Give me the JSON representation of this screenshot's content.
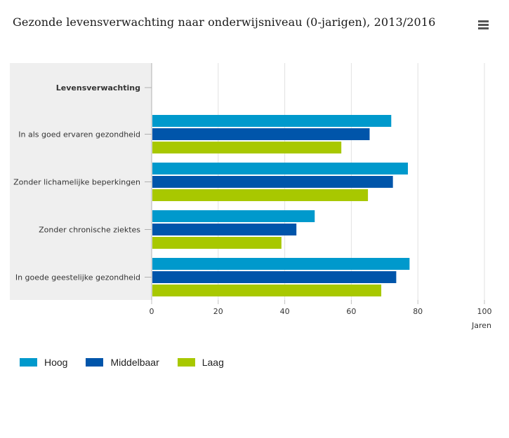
{
  "header": {
    "title": "Gezonde levensverwachting naar onderwijsniveau (0-jarigen), 2013/2016"
  },
  "menu": {
    "icon": "hamburger-menu-icon"
  },
  "chart_data": {
    "type": "bar",
    "orientation": "horizontal",
    "title": "Gezonde levensverwachting naar onderwijsniveau (0-jarigen), 2013/2016",
    "group_header": "Levensverwachting",
    "categories": [
      "In als goed ervaren gezondheid",
      "Zonder lichamelijke beperkingen",
      "Zonder chronische ziektes",
      "In goede geestelijke gezondheid"
    ],
    "series": [
      {
        "name": "Hoog",
        "color": "#0099cc",
        "values": [
          72,
          77,
          49,
          77.5
        ]
      },
      {
        "name": "Middelbaar",
        "color": "#0055aa",
        "values": [
          65.5,
          72.5,
          43.5,
          73.5
        ]
      },
      {
        "name": "Laag",
        "color": "#a8c800",
        "values": [
          57,
          65,
          39,
          69
        ]
      }
    ],
    "xlabel": "Jaren",
    "xlim": [
      0,
      100
    ],
    "xticks": [
      "0",
      "20",
      "40",
      "60",
      "80",
      "100"
    ],
    "grid": true,
    "legend": "bottom-left"
  }
}
